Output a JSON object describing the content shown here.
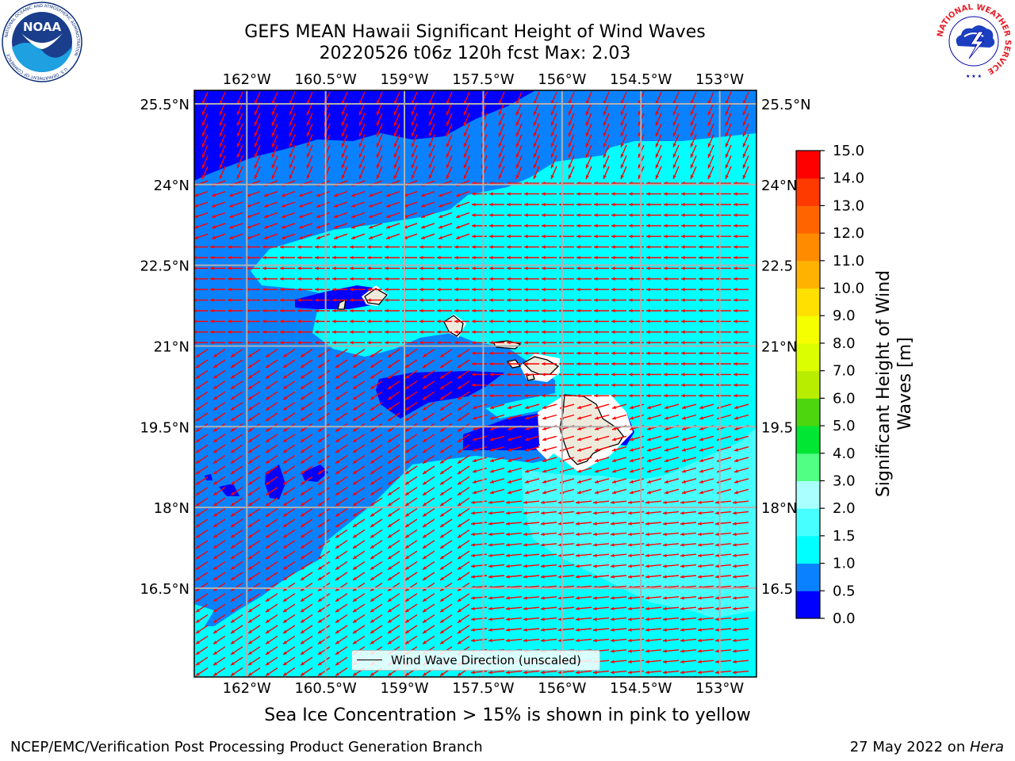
{
  "title": {
    "line1": "GEFS MEAN Hawaii Significant Height of Wind Waves",
    "line2": "20220526 t06z 120h fcst   Max: 2.03"
  },
  "map": {
    "lon_ticks": [
      "162°W",
      "160.5°W",
      "159°W",
      "157.5°W",
      "156°W",
      "154.5°W",
      "153°W"
    ],
    "lon_values": [
      -162,
      -160.5,
      -159,
      -157.5,
      -156,
      -154.5,
      -153
    ],
    "lat_ticks": [
      "25.5°N",
      "24°N",
      "22.5°N",
      "21°N",
      "19.5°N",
      "18°N",
      "16.5°N"
    ],
    "lat_values": [
      25.5,
      24,
      22.5,
      21,
      19.5,
      18,
      16.5
    ],
    "right_lat_ticks": [
      "25.5°N",
      "24°N",
      "22.5",
      "21°N",
      "19.5",
      "18°N",
      "16.5"
    ],
    "extent": {
      "lon_min": -163,
      "lon_max": -152.3,
      "lat_min": 14.85,
      "lat_max": 25.75
    },
    "arrow_color": "#ff0000",
    "arrow_direction": "westward (wind waves from the east)",
    "land_color": "#eeeadb",
    "legend_label": "Wind Wave Direction (unscaled)"
  },
  "colorbar": {
    "label": "Significant Height of Wind Waves [m]",
    "ticks": [
      "0.0",
      "0.5",
      "1.0",
      "1.5",
      "2.0",
      "3.0",
      "4.0",
      "5.0",
      "6.0",
      "7.0",
      "8.0",
      "9.0",
      "10.0",
      "11.0",
      "12.0",
      "13.0",
      "14.0",
      "15.0"
    ],
    "colors": [
      "#0000ff",
      "#0a82ff",
      "#00ffff",
      "#48ffff",
      "#aaffff",
      "#50ff83",
      "#00e633",
      "#4dd60e",
      "#b8ed00",
      "#dbff00",
      "#f5ff00",
      "#ffe000",
      "#ffb300",
      "#ff8c00",
      "#ff6400",
      "#ff3a00",
      "#ff0000"
    ]
  },
  "notes": {
    "sea_ice": "Sea Ice Concentration > 15% is shown in pink to yellow"
  },
  "footer": {
    "left": "NCEP/EMC/Verification Post Processing Product Generation Branch",
    "right_prefix": "27 May 2022 on ",
    "right_host": "Hera"
  },
  "logos": {
    "noaa_text": "NOAA",
    "noaa_ring": "NATIONAL OCEANIC AND ATMOSPHERIC ADMINISTRATION",
    "noaa_ring_bottom": "U.S. DEPARTMENT OF COMMERCE",
    "nws_ring": "NATIONAL WEATHER SERVICE"
  }
}
